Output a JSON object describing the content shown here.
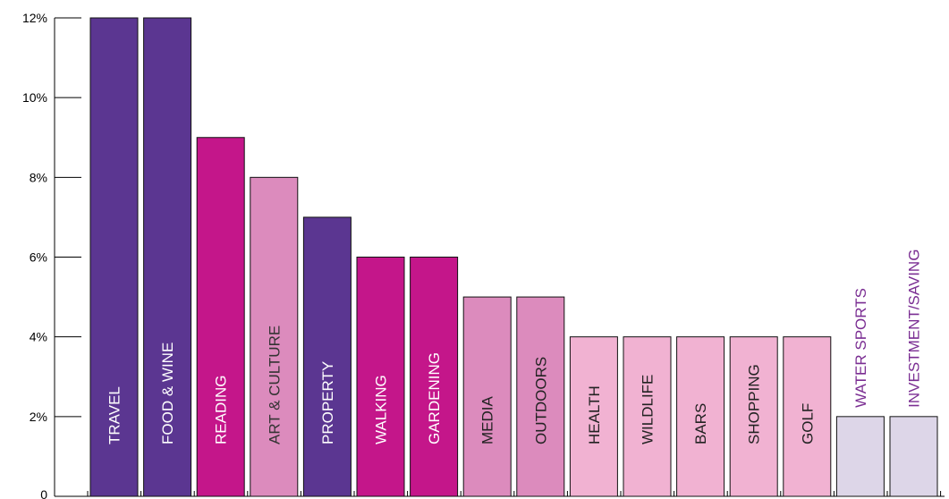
{
  "chart_data": {
    "type": "bar",
    "categories": [
      "TRAVEL",
      "FOOD & WINE",
      "READING",
      "ART & CULTURE",
      "PROPERTY",
      "WALKING",
      "GARDENING",
      "MEDIA",
      "OUTDOORS",
      "HEALTH",
      "WILDLIFE",
      "BARS",
      "SHOPPING",
      "GOLF",
      "WATER SPORTS",
      "INVESTMENT/SAVING"
    ],
    "values": [
      12,
      12,
      9,
      8,
      7,
      6,
      6,
      5,
      5,
      4,
      4,
      4,
      4,
      4,
      2,
      2
    ],
    "bar_colors": [
      "#5b3691",
      "#5b3691",
      "#c4168a",
      "#dc8bbd",
      "#5b3691",
      "#c4168a",
      "#c4168a",
      "#dc8bbd",
      "#dc8bbd",
      "#f1b2d2",
      "#f1b2d2",
      "#f1b2d2",
      "#f1b2d2",
      "#f1b2d2",
      "#ddd6e8",
      "#ddd6e8"
    ],
    "label_colors": [
      "#ffffff",
      "#ffffff",
      "#ffffff",
      "#333333",
      "#ffffff",
      "#ffffff",
      "#ffffff",
      "#222222",
      "#222222",
      "#222222",
      "#222222",
      "#222222",
      "#222222",
      "#222222",
      "#7a2d92",
      "#7a2d92"
    ],
    "y_ticks": [
      {
        "value": 0,
        "label": "0"
      },
      {
        "value": 2,
        "label": "2%"
      },
      {
        "value": 4,
        "label": "4%"
      },
      {
        "value": 6,
        "label": "6%"
      },
      {
        "value": 8,
        "label": "8%"
      },
      {
        "value": 10,
        "label": "10%"
      },
      {
        "value": 12,
        "label": "12%"
      }
    ],
    "ylim": [
      0,
      12
    ],
    "title": "",
    "xlabel": "",
    "ylabel": "",
    "grid": false,
    "legend": "none"
  }
}
